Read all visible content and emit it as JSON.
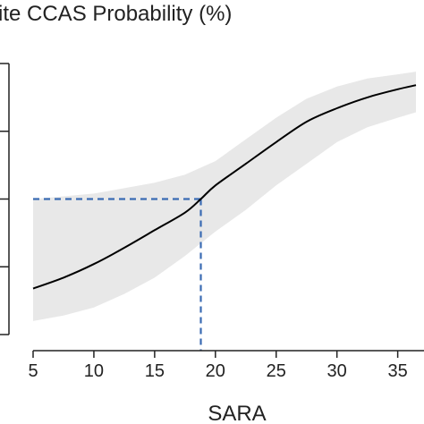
{
  "chart_data": {
    "type": "line",
    "title": "ite CCAS Probability (%)",
    "xlabel": "SARA",
    "ylabel": "",
    "xlim": [
      5,
      36.5
    ],
    "ylim": [
      0,
      100
    ],
    "x_ticks": [
      5,
      10,
      15,
      20,
      25,
      30,
      35
    ],
    "y_ticks": [
      0,
      25,
      50,
      75,
      100
    ],
    "y_tick_labels_visible": false,
    "grid": false,
    "series": [
      {
        "style": "solid",
        "color": "#000000",
        "points": [
          [
            5,
            17
          ],
          [
            7.5,
            21
          ],
          [
            10,
            26
          ],
          [
            12.5,
            32
          ],
          [
            15,
            38.5
          ],
          [
            17.5,
            45
          ],
          [
            18.8,
            50
          ],
          [
            20,
            55
          ],
          [
            22.5,
            63
          ],
          [
            25,
            71
          ],
          [
            27.5,
            78.5
          ],
          [
            30,
            83.5
          ],
          [
            32.5,
            87.5
          ],
          [
            35,
            90.5
          ],
          [
            36.5,
            92
          ]
        ]
      }
    ],
    "confidence_band": {
      "color": "#e8e8e8",
      "upper": [
        [
          5,
          50
        ],
        [
          7.5,
          51
        ],
        [
          10,
          52
        ],
        [
          12.5,
          54
        ],
        [
          15,
          56
        ],
        [
          17.5,
          59
        ],
        [
          20,
          64
        ],
        [
          22.5,
          72
        ],
        [
          25,
          80
        ],
        [
          27.5,
          87
        ],
        [
          30,
          91.5
        ],
        [
          32.5,
          94.5
        ],
        [
          35,
          96
        ],
        [
          36.5,
          97
        ]
      ],
      "lower": [
        [
          5,
          5
        ],
        [
          7.5,
          7
        ],
        [
          10,
          10
        ],
        [
          12.5,
          15
        ],
        [
          15,
          21
        ],
        [
          17.5,
          29
        ],
        [
          20,
          38
        ],
        [
          22.5,
          46
        ],
        [
          25,
          55
        ],
        [
          27.5,
          63
        ],
        [
          30,
          71
        ],
        [
          32.5,
          76.5
        ],
        [
          35,
          80
        ],
        [
          36.5,
          82
        ]
      ]
    },
    "reference_lines": {
      "color": "#3a6bb3",
      "style": "dashed",
      "x": 18.8,
      "y": 50
    }
  }
}
